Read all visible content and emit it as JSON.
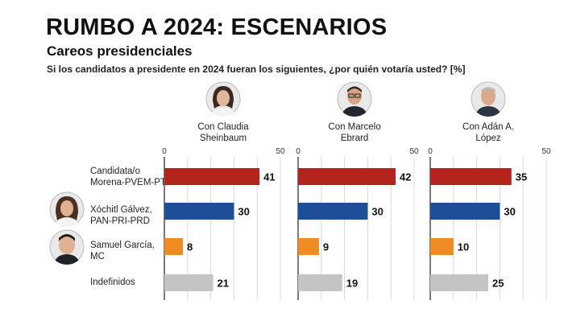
{
  "header": {
    "title": "RUMBO A 2024: ESCENARIOS",
    "subtitle": "Careos presidenciales",
    "question": "Si los candidatos a presidente en 2024 fueran los siguientes, ¿por quién votaría usted? [%]"
  },
  "scenarios": [
    {
      "line1": "Con Claudia",
      "line2": "Sheinbaum",
      "avatar_icon": "claudia-sheinbaum-photo"
    },
    {
      "line1": "Con Marcelo",
      "line2": "Ebrard",
      "avatar_icon": "marcelo-ebrard-photo"
    },
    {
      "line1": "Con Adán A.",
      "line2": "López",
      "avatar_icon": "adan-augusto-lopez-photo"
    }
  ],
  "candidates": [
    {
      "line1": "Candidata/o",
      "line2": "Morena-PVEM-PT",
      "color": "#b3241f"
    },
    {
      "line1": "Xóchitl Gálvez,",
      "line2": "PAN-PRI-PRD",
      "color": "#1f4e99",
      "avatar_icon": "xochitl-galvez-photo"
    },
    {
      "line1": "Samuel García,",
      "line2": "MC",
      "color": "#ee8b25",
      "avatar_icon": "samuel-garcia-photo"
    },
    {
      "line1": "Indefinidos",
      "line2": "",
      "color": "#c4c4c4"
    }
  ],
  "chart_data": {
    "type": "bar",
    "orientation": "horizontal",
    "unit": "%",
    "xlim": [
      0,
      50
    ],
    "ticks": [
      "0",
      "50"
    ],
    "grid": true,
    "categories": [
      "Candidata/o Morena-PVEM-PT",
      "Xóchitl Gálvez, PAN-PRI-PRD",
      "Samuel García, MC",
      "Indefinidos"
    ],
    "series": [
      {
        "name": "Con Claudia Sheinbaum",
        "values": [
          41,
          30,
          8,
          21
        ]
      },
      {
        "name": "Con Marcelo Ebrard",
        "values": [
          42,
          30,
          9,
          19
        ]
      },
      {
        "name": "Con Adán A. López",
        "values": [
          35,
          30,
          10,
          25
        ]
      }
    ]
  }
}
